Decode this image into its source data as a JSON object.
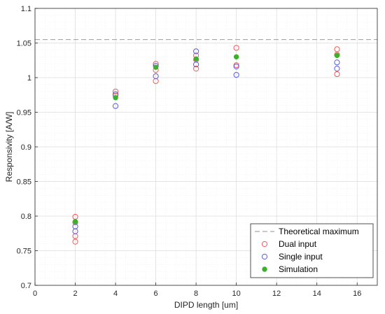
{
  "chart_data": {
    "type": "scatter",
    "title": "",
    "xlabel": "DIPD length [um]",
    "ylabel": "Responsivity [A/W]",
    "xlim": [
      0,
      17
    ],
    "ylim": [
      0.7,
      1.1
    ],
    "xticks": [
      0,
      2,
      4,
      6,
      8,
      10,
      12,
      14,
      16
    ],
    "yticks": [
      0.7,
      0.75,
      0.8,
      0.85,
      0.9,
      0.95,
      1,
      1.05,
      1.1
    ],
    "xtick_labels": [
      "0",
      "2",
      "4",
      "6",
      "8",
      "10",
      "12",
      "14",
      "16"
    ],
    "ytick_labels": [
      "0.7",
      "0.75",
      "0.8",
      "0.85",
      "0.9",
      "0.95",
      "1",
      "1.05",
      "1.1"
    ],
    "grid": true,
    "minor_grid": true,
    "legend_position": "bottom-right",
    "theoretical_maximum": 1.055,
    "series": [
      {
        "name": "Theoretical maximum",
        "style": "dashed-line",
        "color": "#a6a6a6",
        "y": 1.055
      },
      {
        "name": "Dual input",
        "style": "open-circle",
        "color": "#f05a5a",
        "points": [
          {
            "x": 2,
            "y": 0.799
          },
          {
            "x": 2,
            "y": 0.791
          },
          {
            "x": 2,
            "y": 0.771
          },
          {
            "x": 2,
            "y": 0.763
          },
          {
            "x": 4,
            "y": 0.98
          },
          {
            "x": 4,
            "y": 0.974
          },
          {
            "x": 6,
            "y": 1.02
          },
          {
            "x": 6,
            "y": 1.011
          },
          {
            "x": 6,
            "y": 0.995
          },
          {
            "x": 8,
            "y": 1.032
          },
          {
            "x": 8,
            "y": 1.026
          },
          {
            "x": 8,
            "y": 1.013
          },
          {
            "x": 10,
            "y": 1.043
          },
          {
            "x": 10,
            "y": 1.018
          },
          {
            "x": 15,
            "y": 1.041
          },
          {
            "x": 15,
            "y": 1.033
          },
          {
            "x": 15,
            "y": 1.005
          }
        ]
      },
      {
        "name": "Single input",
        "style": "open-circle",
        "color": "#5b5bd9",
        "points": [
          {
            "x": 2,
            "y": 0.785
          },
          {
            "x": 2,
            "y": 0.778
          },
          {
            "x": 4,
            "y": 0.976
          },
          {
            "x": 4,
            "y": 0.959
          },
          {
            "x": 6,
            "y": 1.017
          },
          {
            "x": 6,
            "y": 1.002
          },
          {
            "x": 8,
            "y": 1.038
          },
          {
            "x": 8,
            "y": 1.019
          },
          {
            "x": 10,
            "y": 1.016
          },
          {
            "x": 10,
            "y": 1.004
          },
          {
            "x": 15,
            "y": 1.022
          },
          {
            "x": 15,
            "y": 1.013
          }
        ]
      },
      {
        "name": "Simulation",
        "style": "filled-circle",
        "color": "#3cb02c",
        "points": [
          {
            "x": 2,
            "y": 0.792
          },
          {
            "x": 4,
            "y": 0.971
          },
          {
            "x": 6,
            "y": 1.015
          },
          {
            "x": 8,
            "y": 1.027
          },
          {
            "x": 10,
            "y": 1.03
          },
          {
            "x": 15,
            "y": 1.032
          }
        ]
      }
    ]
  }
}
